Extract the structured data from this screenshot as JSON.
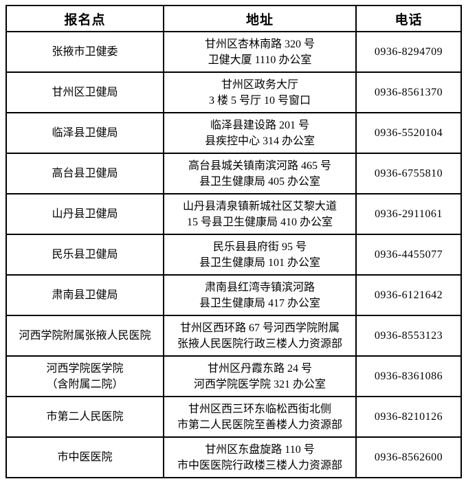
{
  "table": {
    "headers": [
      "报名点",
      "地址",
      "电话"
    ],
    "rows": [
      {
        "site_lines": [
          "张掖市卫健委"
        ],
        "address_lines": [
          "甘州区杏林南路 320 号",
          "卫健大厦 1110 办公室"
        ],
        "phone": "0936-8294709"
      },
      {
        "site_lines": [
          "甘州区卫健局"
        ],
        "address_lines": [
          "甘州区政务大厅",
          "3 楼 5 号厅 10 号窗口"
        ],
        "phone": "0936-8561370"
      },
      {
        "site_lines": [
          "临泽县卫健局"
        ],
        "address_lines": [
          "临泽县建设路 201 号",
          "县疾控中心 314 办公室"
        ],
        "phone": "0936-5520104"
      },
      {
        "site_lines": [
          "高台县卫健局"
        ],
        "address_lines": [
          "高台县城关镇南滨河路 465 号",
          "县卫生健康局 405 办公室"
        ],
        "phone": "0936-6755810"
      },
      {
        "site_lines": [
          "山丹县卫健局"
        ],
        "address_lines": [
          "山丹县清泉镇新城社区艾黎大道",
          "15 号县卫生健康局 410 办公室"
        ],
        "phone": "0936-2911061"
      },
      {
        "site_lines": [
          "民乐县卫健局"
        ],
        "address_lines": [
          "民乐县县府街 95 号",
          "县卫生健康局 101 办公室"
        ],
        "phone": "0936-4455077"
      },
      {
        "site_lines": [
          "肃南县卫健局"
        ],
        "address_lines": [
          "肃南县红湾寺镇滨河路",
          "县卫生健康局 417 办公室"
        ],
        "phone": "0936-6121642"
      },
      {
        "site_lines": [
          "河西学院附属张掖人民医院"
        ],
        "address_lines": [
          "甘州区西环路 67 号河西学院附属",
          "张掖人民医院行政三楼人力资源部"
        ],
        "phone": "0936-8553123"
      },
      {
        "site_lines": [
          "河西学院医学院",
          "（含附属二院）"
        ],
        "address_lines": [
          "甘州区丹霞东路 24 号",
          "河西学院医学院 321 办公室"
        ],
        "phone": "0936-8361086"
      },
      {
        "site_lines": [
          "市第二人民医院"
        ],
        "address_lines": [
          "甘州区西三环东临松西街北侧",
          "市第二人民医院至善楼人力资源部"
        ],
        "phone": "0936-8210126"
      },
      {
        "site_lines": [
          "市中医医院"
        ],
        "address_lines": [
          "甘州区东盘旋路 110 号",
          "市中医医院行政楼三楼人力资源部"
        ],
        "phone": "0936-8562600"
      }
    ]
  },
  "colors": {
    "border": "#000000",
    "text": "#000000",
    "background": "#ffffff"
  }
}
